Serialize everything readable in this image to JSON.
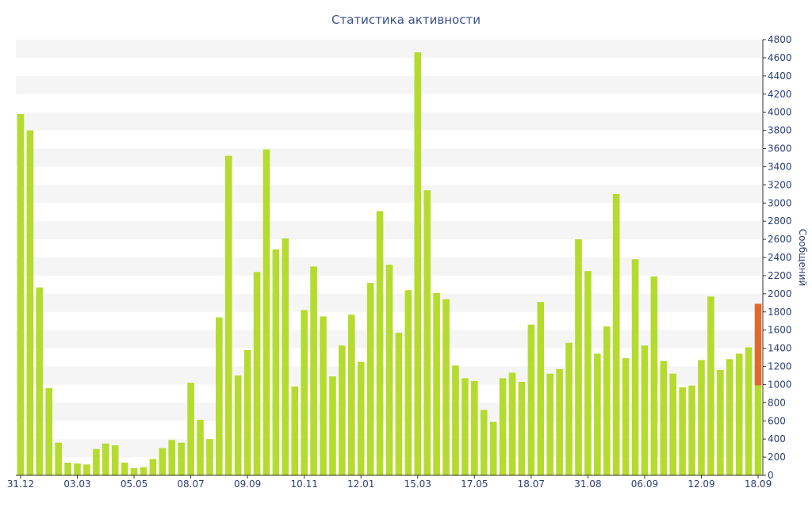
{
  "chart_data": {
    "type": "bar",
    "title": "Статистика активности",
    "ylabel": "Сообщений",
    "xlabel": "",
    "ylim": [
      0,
      4800
    ],
    "y_ticks": [
      0,
      200,
      400,
      600,
      800,
      1000,
      1200,
      1400,
      1600,
      1800,
      2000,
      2200,
      2400,
      2600,
      2800,
      3000,
      3200,
      3400,
      3600,
      3800,
      4000,
      4200,
      4400,
      4600,
      4800
    ],
    "grid": "alternating horizontal bands",
    "y_axis_position": "right",
    "x_tick_labels": [
      {
        "index": 0,
        "label": "31.12"
      },
      {
        "index": 6,
        "label": "03.03"
      },
      {
        "index": 12,
        "label": "05.05"
      },
      {
        "index": 18,
        "label": "08.07"
      },
      {
        "index": 24,
        "label": "09.09"
      },
      {
        "index": 30,
        "label": "10.11"
      },
      {
        "index": 36,
        "label": "12.01"
      },
      {
        "index": 42,
        "label": "15.03"
      },
      {
        "index": 48,
        "label": "17.05"
      },
      {
        "index": 54,
        "label": "18.07"
      },
      {
        "index": 60,
        "label": "31.08"
      },
      {
        "index": 66,
        "label": "06.09"
      },
      {
        "index": 72,
        "label": "12.09"
      },
      {
        "index": 78,
        "label": "18.09"
      }
    ],
    "bar_color": "#b5db2e",
    "highlight_color": "#e06a2c",
    "values": [
      3980,
      3800,
      2070,
      960,
      360,
      140,
      130,
      120,
      290,
      350,
      330,
      140,
      80,
      90,
      180,
      300,
      390,
      360,
      1020,
      610,
      400,
      1740,
      3520,
      1100,
      1380,
      2240,
      3590,
      2490,
      2610,
      980,
      1820,
      2300,
      1750,
      1090,
      1430,
      1770,
      1250,
      2120,
      2910,
      2320,
      1570,
      2040,
      4660,
      3140,
      2010,
      1940,
      1210,
      1070,
      1040,
      720,
      590,
      1070,
      1130,
      1030,
      1660,
      1910,
      1120,
      1170,
      1460,
      2600,
      2250,
      1340,
      1640,
      3100,
      1290,
      2380,
      1430,
      2190,
      1260,
      1120,
      970,
      990,
      1270,
      1970,
      1160,
      1280,
      1340,
      1410,
      990
    ],
    "last_bar_extra": 900
  }
}
